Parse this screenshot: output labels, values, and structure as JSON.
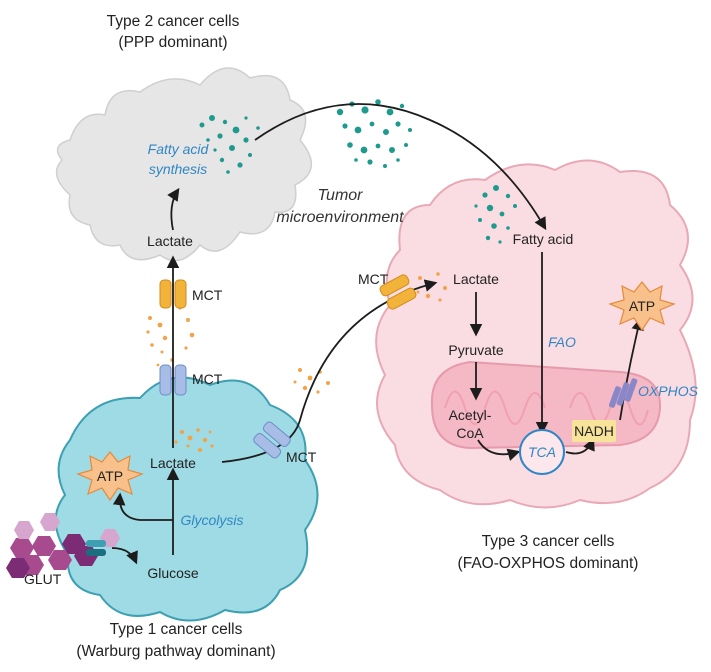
{
  "cells": {
    "type1": {
      "title_line1": "Type 1 cancer cells",
      "title_line2": "(Warburg pathway dominant)"
    },
    "type2": {
      "title_line1": "Type 2 cancer cells",
      "title_line2": "(PPP dominant)"
    },
    "type3": {
      "title_line1": "Type 3 cancer cells",
      "title_line2": "(FAO-OXPHOS dominant)"
    }
  },
  "environment": {
    "line1": "Tumor",
    "line2": "microenvironment"
  },
  "labels": {
    "glut": "GLUT",
    "glucose": "Glucose",
    "glycolysis": "Glycolysis",
    "atp": "ATP",
    "lactate": "Lactate",
    "mct": "MCT",
    "fatty_acid_synthesis_line1": "Fatty acid",
    "fatty_acid_synthesis_line2": "synthesis",
    "fatty_acid": "Fatty acid",
    "pyruvate": "Pyruvate",
    "acetyl_coa_line1": "Acetyl-",
    "acetyl_coa_line2": "CoA",
    "fao": "FAO",
    "tca": "TCA",
    "nadh": "NADH",
    "oxphos": "OXPHOS"
  },
  "colors": {
    "type1_cell": "#9fdbe4",
    "type1_border": "#3d9fb2",
    "type2_cell": "#e6e6e6",
    "type3_cell": "#fadde3",
    "type3_border": "#e9a8b6",
    "mito": "#f5b8c5",
    "lactate_dots": "#f2a34a",
    "fatty_dots": "#1e9a8f",
    "process_blue": "#2f86c5",
    "atp_fill": "#f8c08a",
    "nadh_fill": "#f7e39a",
    "mct_orange": "#f2b33a",
    "mct_blue": "#a7bde6",
    "glucose_hex": "#a84a8e",
    "oxphos_purple": "#8a87c9"
  },
  "icons": [
    "atp-burst-icon",
    "nadh-box",
    "mct-transporter-icon",
    "glut-transporter-icon",
    "glucose-hexagon-icon",
    "oxphos-complex-icon"
  ]
}
